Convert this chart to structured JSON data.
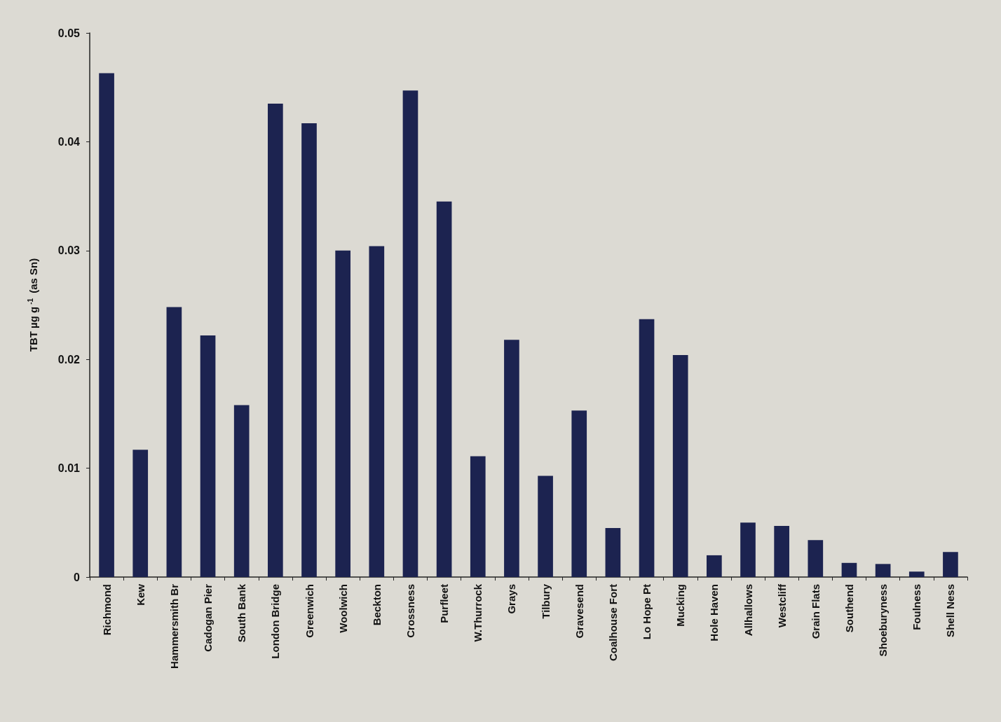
{
  "chart_data": {
    "type": "bar",
    "ylabel": "TBT µg g$^{-1}$ (as Sn)",
    "categories": [
      "Richmond",
      "Kew",
      "Hammersmith Br",
      "Cadogan Pier",
      "South Bank",
      "London Bridge",
      "Greenwich",
      "Woolwich",
      "Beckton",
      "Crossness",
      "Purfleet",
      "W.Thurrock",
      "Grays",
      "Tilbury",
      "Gravesend",
      "Coalhouse Fort",
      "Lo Hope Pt",
      "Mucking",
      "Hole Haven",
      "Allhallows",
      "Westcliff",
      "Grain Flats",
      "Southend",
      "Shoeburyness",
      "Foulness",
      "Shell Ness"
    ],
    "values": [
      0.0463,
      0.0117,
      0.0248,
      0.0222,
      0.0158,
      0.0435,
      0.0417,
      0.03,
      0.0304,
      0.0447,
      0.0345,
      0.0111,
      0.0218,
      0.0093,
      0.0153,
      0.0045,
      0.0237,
      0.0204,
      0.002,
      0.005,
      0.0047,
      0.0034,
      0.0013,
      0.0012,
      0.0005,
      0.0023
    ],
    "color": "#1c2350",
    "ylim": [
      0,
      0.05
    ],
    "yticks": [
      0,
      0.01,
      0.02,
      0.03,
      0.04,
      0.05
    ],
    "grid": false
  }
}
